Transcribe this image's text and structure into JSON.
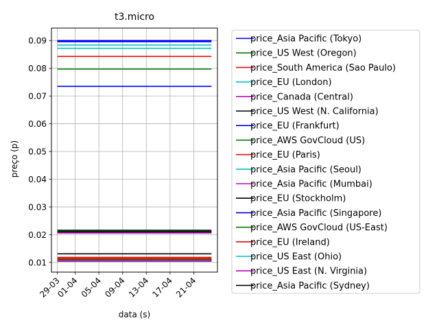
{
  "chart_data": {
    "type": "line",
    "title": "t3.micro",
    "xlabel": "data (s)",
    "ylabel": "preço (p)",
    "x_ticks": [
      "29-03",
      "01-04",
      "05-04",
      "09-04",
      "13-04",
      "17-04",
      "21-04"
    ],
    "x_range": [
      "2018-03-28",
      "2018-04-25"
    ],
    "x": [
      "2018-03-29",
      "2018-04-24"
    ],
    "y_ticks": [
      "0.01",
      "0.02",
      "0.03",
      "0.04",
      "0.05",
      "0.06",
      "0.07",
      "0.08",
      "0.09"
    ],
    "ylim": [
      0.0065,
      0.0945
    ],
    "grid": true,
    "legend_position": "right, outside plot",
    "series": [
      {
        "name": "price_Asia Pacific (Tokyo)",
        "color": "#0000ff",
        "value": 0.0896
      },
      {
        "name": "price_US West (Oregon)",
        "color": "#008000",
        "value": 0.0797
      },
      {
        "name": "price_South America (Sao Paulo)",
        "color": "#ff0000",
        "value": 0.0843
      },
      {
        "name": "price_EU (London)",
        "color": "#00bfbf",
        "value": 0.0872
      },
      {
        "name": "price_Canada (Central)",
        "color": "#bf00bf",
        "value": 0.0206
      },
      {
        "name": "price_US West (N. California)",
        "color": "#000000",
        "value": 0.0216
      },
      {
        "name": "price_EU (Frankfurt)",
        "color": "#0000ff",
        "value": 0.0735
      },
      {
        "name": "price_AWS GovCloud (US)",
        "color": "#008000",
        "value": 0.0212
      },
      {
        "name": "price_EU (Paris)",
        "color": "#ff0000",
        "value": 0.0118
      },
      {
        "name": "price_Asia Pacific (Seoul)",
        "color": "#00bfbf",
        "value": 0.0884
      },
      {
        "name": "price_Asia Pacific (Mumbai)",
        "color": "#bf00bf",
        "value": 0.0109
      },
      {
        "name": "price_EU (Stockholm)",
        "color": "#000000",
        "value": 0.0131
      },
      {
        "name": "price_Asia Pacific (Singapore)",
        "color": "#0000ff",
        "value": 0.09
      },
      {
        "name": "price_AWS GovCloud (US-East)",
        "color": "#008000",
        "value": 0.011
      },
      {
        "name": "price_EU (Ireland)",
        "color": "#ff0000",
        "value": 0.0114
      },
      {
        "name": "price_US East (Ohio)",
        "color": "#00bfbf",
        "value": 0.0105
      },
      {
        "name": "price_US East (N. Virginia)",
        "color": "#bf00bf",
        "value": 0.0104
      },
      {
        "name": "price_Asia Pacific (Sydney)",
        "color": "#000000",
        "value": 0.021
      }
    ]
  }
}
